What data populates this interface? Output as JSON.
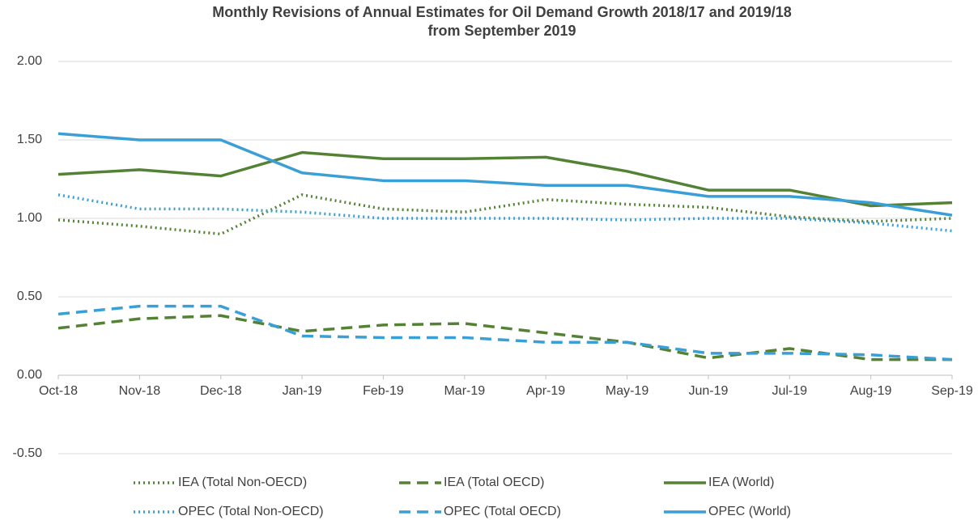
{
  "chart_data": {
    "type": "line",
    "title": [
      "Monthly Revisions of Annual Estimates for Oil Demand Growth 2018/17 and 2019/18",
      "from September 2019"
    ],
    "categories": [
      "Oct-18",
      "Nov-18",
      "Dec-18",
      "Jan-19",
      "Feb-19",
      "Mar-19",
      "Apr-19",
      "May-19",
      "Jun-19",
      "Jul-19",
      "Aug-19",
      "Sep-19"
    ],
    "series": [
      {
        "name": "IEA (Total Non-OECD)",
        "color": "#548235",
        "dash": "dotted",
        "values": [
          0.99,
          0.95,
          0.9,
          1.15,
          1.06,
          1.04,
          1.12,
          1.09,
          1.07,
          1.01,
          0.98,
          1.0
        ]
      },
      {
        "name": "IEA (Total OECD)",
        "color": "#548235",
        "dash": "dashed",
        "values": [
          0.3,
          0.36,
          0.38,
          0.28,
          0.32,
          0.33,
          0.27,
          0.21,
          0.11,
          0.17,
          0.1,
          0.1
        ]
      },
      {
        "name": "IEA (World)",
        "color": "#548235",
        "dash": "solid",
        "values": [
          1.28,
          1.31,
          1.27,
          1.42,
          1.38,
          1.38,
          1.39,
          1.3,
          1.18,
          1.18,
          1.08,
          1.1
        ]
      },
      {
        "name": "OPEC (Total Non-OECD)",
        "color": "#3a9fd6",
        "dash": "dotted",
        "values": [
          1.15,
          1.06,
          1.06,
          1.04,
          1.0,
          1.0,
          1.0,
          0.99,
          1.0,
          1.0,
          0.97,
          0.92
        ]
      },
      {
        "name": "OPEC (Total OECD)",
        "color": "#3a9fd6",
        "dash": "dashed",
        "values": [
          0.39,
          0.44,
          0.44,
          0.25,
          0.24,
          0.24,
          0.21,
          0.21,
          0.14,
          0.14,
          0.13,
          0.1
        ]
      },
      {
        "name": "OPEC (World)",
        "color": "#3a9fd6",
        "dash": "solid",
        "values": [
          1.54,
          1.5,
          1.5,
          1.29,
          1.24,
          1.24,
          1.21,
          1.21,
          1.14,
          1.14,
          1.1,
          1.02
        ]
      }
    ],
    "ylim": [
      -0.5,
      2.0
    ],
    "yticks": [
      {
        "value": -0.5,
        "label": "-0.50"
      },
      {
        "value": 0,
        "label": "0.00"
      },
      {
        "value": 0.5,
        "label": "0.50"
      },
      {
        "value": 1,
        "label": "1.00"
      },
      {
        "value": 1.5,
        "label": "1.50"
      },
      {
        "value": 2,
        "label": "2.00"
      }
    ],
    "grid": true,
    "legend": "bottom"
  }
}
